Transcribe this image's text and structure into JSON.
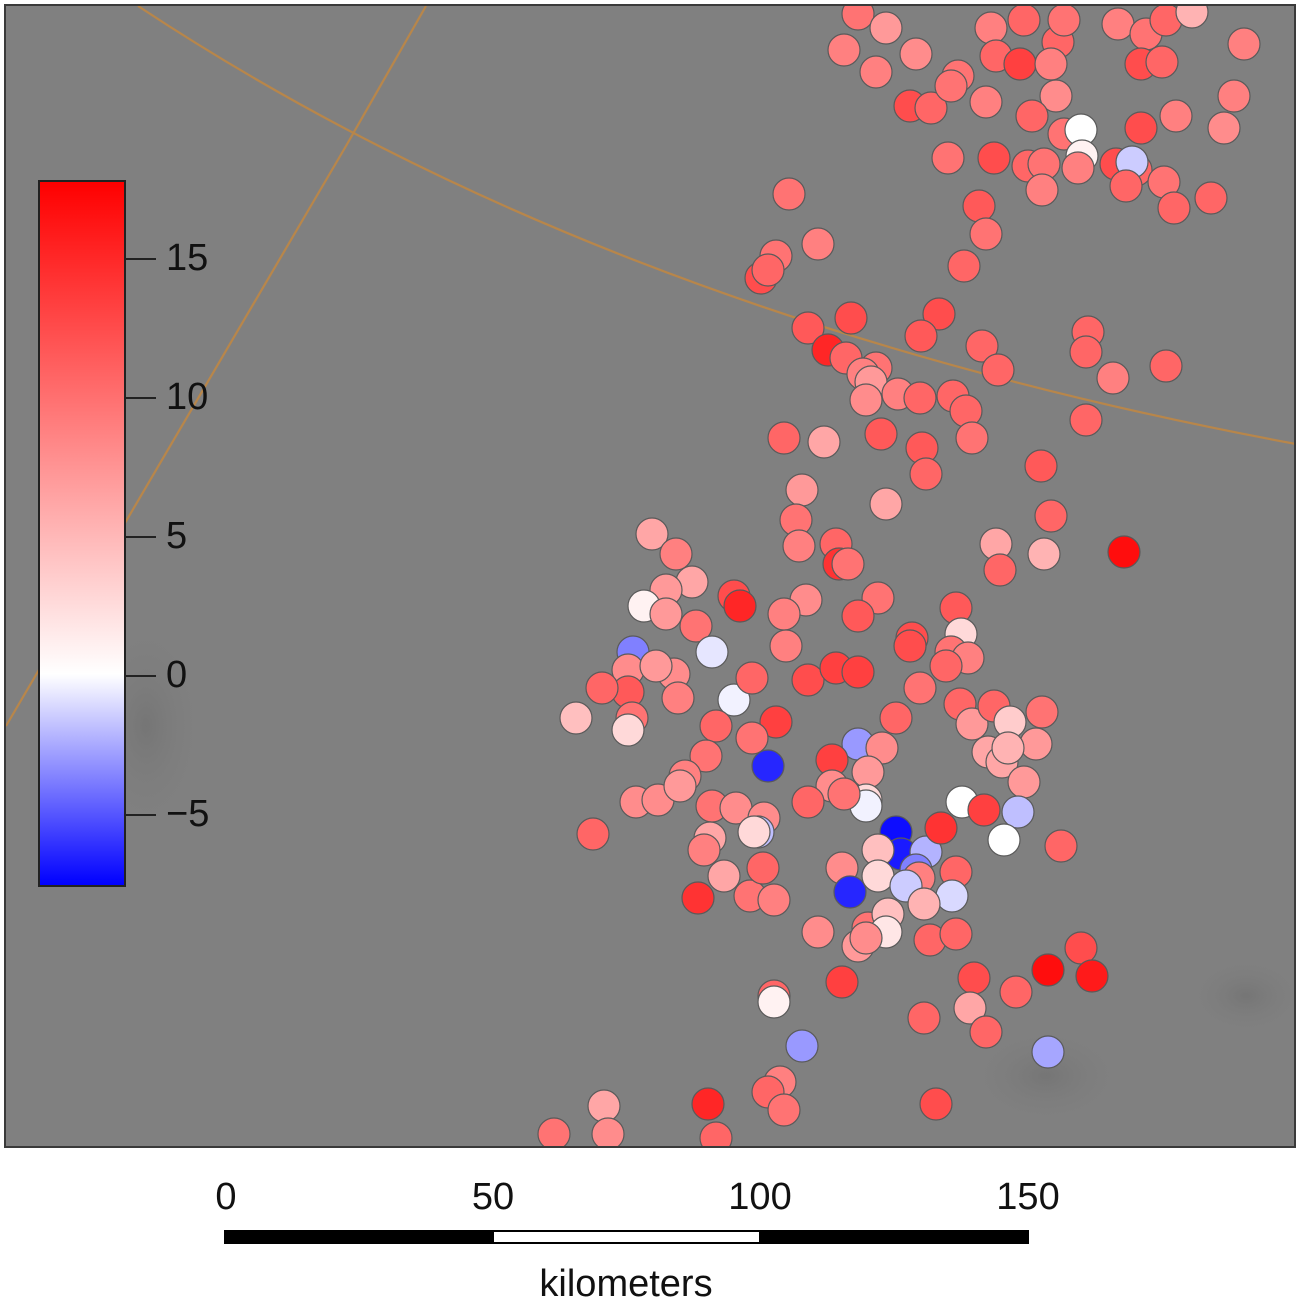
{
  "map": {
    "background_color": "#808080",
    "boundary_color": "#b8864a"
  },
  "legend": {
    "colormap": [
      "#0000ff",
      "#ffffff",
      "#ff0000"
    ],
    "tick_labels": [
      "15",
      "10",
      "5",
      "0",
      "−5"
    ]
  },
  "scale_bar": {
    "tick_labels": [
      "0",
      "50",
      "100",
      "150"
    ],
    "unit": "kilometers"
  }
}
